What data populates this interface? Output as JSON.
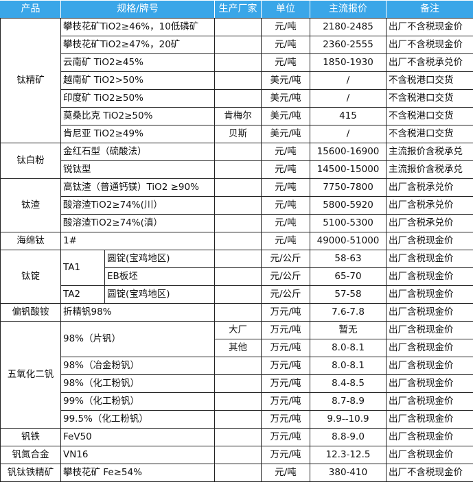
{
  "header": {
    "product": "产品",
    "spec": "规格/牌号",
    "maker": "生产厂家",
    "unit": "单位",
    "price": "主流报价",
    "note": "备注"
  },
  "colors": {
    "header_bg": "#3aa6e8",
    "header_text": "#ffffff"
  },
  "groups": {
    "tjk": {
      "product": "钛精矿",
      "rows": [
        {
          "spec": "攀枝花矿TiO2≥46%，10低磷矿",
          "maker": "",
          "unit": "元/吨",
          "price": "2180-2485",
          "note": "出厂不含税现金价"
        },
        {
          "spec": "攀枝花矿TiO2≥47%，20矿",
          "maker": "",
          "unit": "元/吨",
          "price": "2360-2555",
          "note": "出厂不含税现金价"
        },
        {
          "spec": "云南矿 TiO2≥45%",
          "maker": "",
          "unit": "元/吨",
          "price": "1850-1930",
          "note": "出厂不含税承兑价"
        },
        {
          "spec": "越南矿 TiO2>50%",
          "maker": "",
          "unit": "美元/吨",
          "price": "/",
          "note": "不含税港口交货"
        },
        {
          "spec": "印度矿 TiO2≥50%",
          "maker": "",
          "unit": "美元/吨",
          "price": "/",
          "note": "不含税港口交货"
        },
        {
          "spec": "莫桑比克 TiO2≥50%",
          "maker": "肯梅尔",
          "unit": "美元/吨",
          "price": "415",
          "note": "不含税港口交货"
        },
        {
          "spec": "肯尼亚 TiO2≥49%",
          "maker": "贝斯",
          "unit": "美元/吨",
          "price": "/",
          "note": "不含税港口交货"
        }
      ]
    },
    "tbf": {
      "product": "钛白粉",
      "rows": [
        {
          "spec": "金红石型（硫酸法）",
          "unit": "元/吨",
          "price": "15600-16900",
          "note": "主流报价含税承兑"
        },
        {
          "spec": "锐钛型",
          "unit": "元/吨",
          "price": "14500-15000",
          "note": "主流报价含税承兑"
        }
      ]
    },
    "tz": {
      "product": "钛渣",
      "rows": [
        {
          "spec": "高钛渣（普通钙镁）TiO2 ≥90%",
          "unit": "元/吨",
          "price": "7750-7800",
          "note": "出厂含税承兑价"
        },
        {
          "spec": "酸溶渣TiO2≥74%(川）",
          "unit": "元/吨",
          "price": "5800-5920",
          "note": "出厂含税承兑价"
        },
        {
          "spec": "酸溶渣TiO2≥74%(滇）",
          "unit": "元/吨",
          "price": "5100-5300",
          "note": "出厂含税承兑价"
        }
      ]
    },
    "hmt": {
      "product": "海绵钛",
      "rows": [
        {
          "spec": "1#",
          "unit": "元/吨",
          "price": "49000-51000",
          "note": "出厂含税现金价"
        }
      ]
    },
    "td": {
      "product": "钛锭",
      "rows": [
        {
          "grade": "TA1",
          "spec": "圆锭(宝鸡地区)",
          "unit": "元/公斤",
          "price": "58-63",
          "note": "出厂含税现金价"
        },
        {
          "spec": "EB板坯",
          "unit": "元/公斤",
          "price": "65-70",
          "note": "出厂含税现金价"
        },
        {
          "grade": "TA2",
          "spec": "圆锭(宝鸡地区)",
          "unit": "元/公斤",
          "price": "57-58",
          "note": "出厂含税现金价"
        }
      ]
    },
    "pfsa": {
      "product": "偏钒酸铵",
      "rows": [
        {
          "spec": "折精钒98%",
          "unit": "万元/吨",
          "price": "7.6-7.8",
          "note": "出厂含税现金价"
        }
      ]
    },
    "wyhef": {
      "product": "五氧化二钒",
      "rows": [
        {
          "spec": "98%（片钒）",
          "maker": "大厂",
          "unit": "万元/吨",
          "price": "暂无",
          "note": "出厂含税现金价"
        },
        {
          "maker": "其他",
          "unit": "万元/吨",
          "price": "8.0-8.1",
          "note": "出厂含税现金价"
        },
        {
          "spec": "98%（冶金粉钒）",
          "unit": "万元/吨",
          "price": "8.0-8.1",
          "note": "出厂含税现金价"
        },
        {
          "spec": "98%（化工粉钒）",
          "unit": "万元/吨",
          "price": "8.4-8.5",
          "note": "出厂含税现金价"
        },
        {
          "spec": "99%（化工粉钒）",
          "unit": "万元/吨",
          "price": "8.7-8.9",
          "note": "出厂含税现金价"
        },
        {
          "spec": "99.5%（化工粉钒）",
          "unit": "万元/吨",
          "price": "9.9--10.9",
          "note": "出厂含税现金价"
        }
      ]
    },
    "ft": {
      "product": "钒铁",
      "rows": [
        {
          "spec": "FeV50",
          "unit": "万元/吨",
          "price": "8.8-9.0",
          "note": "出厂含税现金价"
        }
      ]
    },
    "fdhj": {
      "product": "钒氮合金",
      "rows": [
        {
          "spec": "VN16",
          "unit": "万元/吨",
          "price": "12.3-12.5",
          "note": "出厂含税现金价"
        }
      ]
    },
    "ftt": {
      "product": "钒钛铁精矿",
      "rows": [
        {
          "spec": "攀枝花矿 Fe≥54%",
          "unit": "元/吨",
          "price": "380-410",
          "note": "出厂不含税现金价"
        }
      ]
    }
  }
}
